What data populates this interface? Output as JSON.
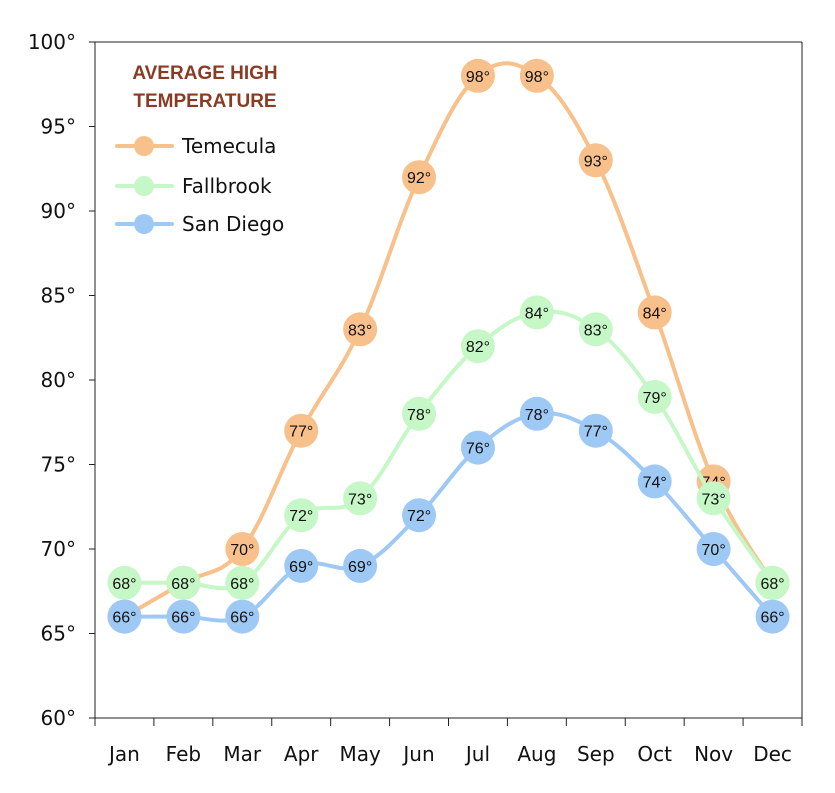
{
  "chart_data": {
    "type": "line",
    "title": "AVERAGE HIGH TEMPERATURE",
    "categories": [
      "Jan",
      "Feb",
      "Mar",
      "Apr",
      "May",
      "Jun",
      "Jul",
      "Aug",
      "Sep",
      "Oct",
      "Nov",
      "Dec"
    ],
    "series": [
      {
        "name": "Temecula",
        "color": "#f8c08a",
        "values": [
          66,
          68,
          70,
          77,
          83,
          92,
          98,
          98,
          93,
          84,
          74,
          68
        ]
      },
      {
        "name": "Fallbrook",
        "color": "#c6f7c6",
        "values": [
          68,
          68,
          68,
          72,
          73,
          78,
          82,
          84,
          83,
          79,
          73,
          68
        ]
      },
      {
        "name": "San Diego",
        "color": "#9ec9f5",
        "values": [
          66,
          66,
          66,
          69,
          69,
          72,
          76,
          78,
          77,
          74,
          70,
          66
        ]
      }
    ],
    "ylim": [
      60,
      100
    ],
    "yticks": [
      60,
      65,
      70,
      75,
      80,
      85,
      90,
      95,
      100
    ],
    "ytick_labels": [
      "60°",
      "65°",
      "70°",
      "75°",
      "80°",
      "85°",
      "90°",
      "95°",
      "100°"
    ],
    "value_suffix": "°",
    "xlabel": "",
    "ylabel": "",
    "grid": false,
    "legend_position": "top-left"
  }
}
